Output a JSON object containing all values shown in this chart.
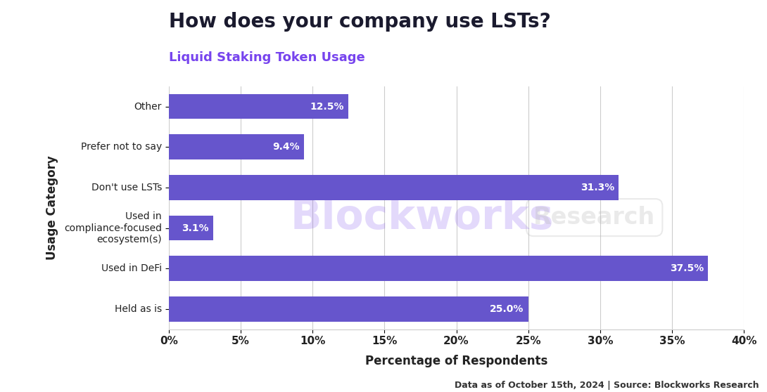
{
  "title": "How does your company use LSTs?",
  "subtitle": "Liquid Staking Token Usage",
  "categories": [
    "Held as is",
    "Used in DeFi",
    "Used in\ncompliance-focused\necosystem(s)",
    "Don't use LSTs",
    "Prefer not to say",
    "Other"
  ],
  "values": [
    25.0,
    37.5,
    3.1,
    31.3,
    9.4,
    12.5
  ],
  "labels": [
    "25.0%",
    "37.5%",
    "3.1%",
    "31.3%",
    "9.4%",
    "12.5%"
  ],
  "bar_color": "#6655cc",
  "title_color": "#1a1a2e",
  "subtitle_color": "#7744ee",
  "xlabel": "Percentage of Respondents",
  "ylabel": "Usage Category",
  "xlim": [
    0,
    40
  ],
  "xtick_values": [
    0,
    5,
    10,
    15,
    20,
    25,
    30,
    35,
    40
  ],
  "xtick_labels": [
    "0%",
    "5%",
    "10%",
    "15%",
    "20%",
    "25%",
    "30%",
    "35%",
    "40%"
  ],
  "footnote": "Data as of October 15th, 2024 | Source: Blockworks Research",
  "background_color": "#ffffff",
  "grid_color": "#cccccc",
  "title_fontsize": 20,
  "subtitle_fontsize": 13,
  "label_fontsize": 10,
  "bar_label_fontsize": 10,
  "axis_label_fontsize": 12,
  "tick_fontsize": 11,
  "footnote_fontsize": 9,
  "watermark_main": "Blockworks",
  "watermark_sub": "Research",
  "watermark_main_color": "#7744ee",
  "watermark_sub_color": "#bbbbbb",
  "watermark_main_alpha": 0.2,
  "watermark_sub_alpha": 0.3
}
